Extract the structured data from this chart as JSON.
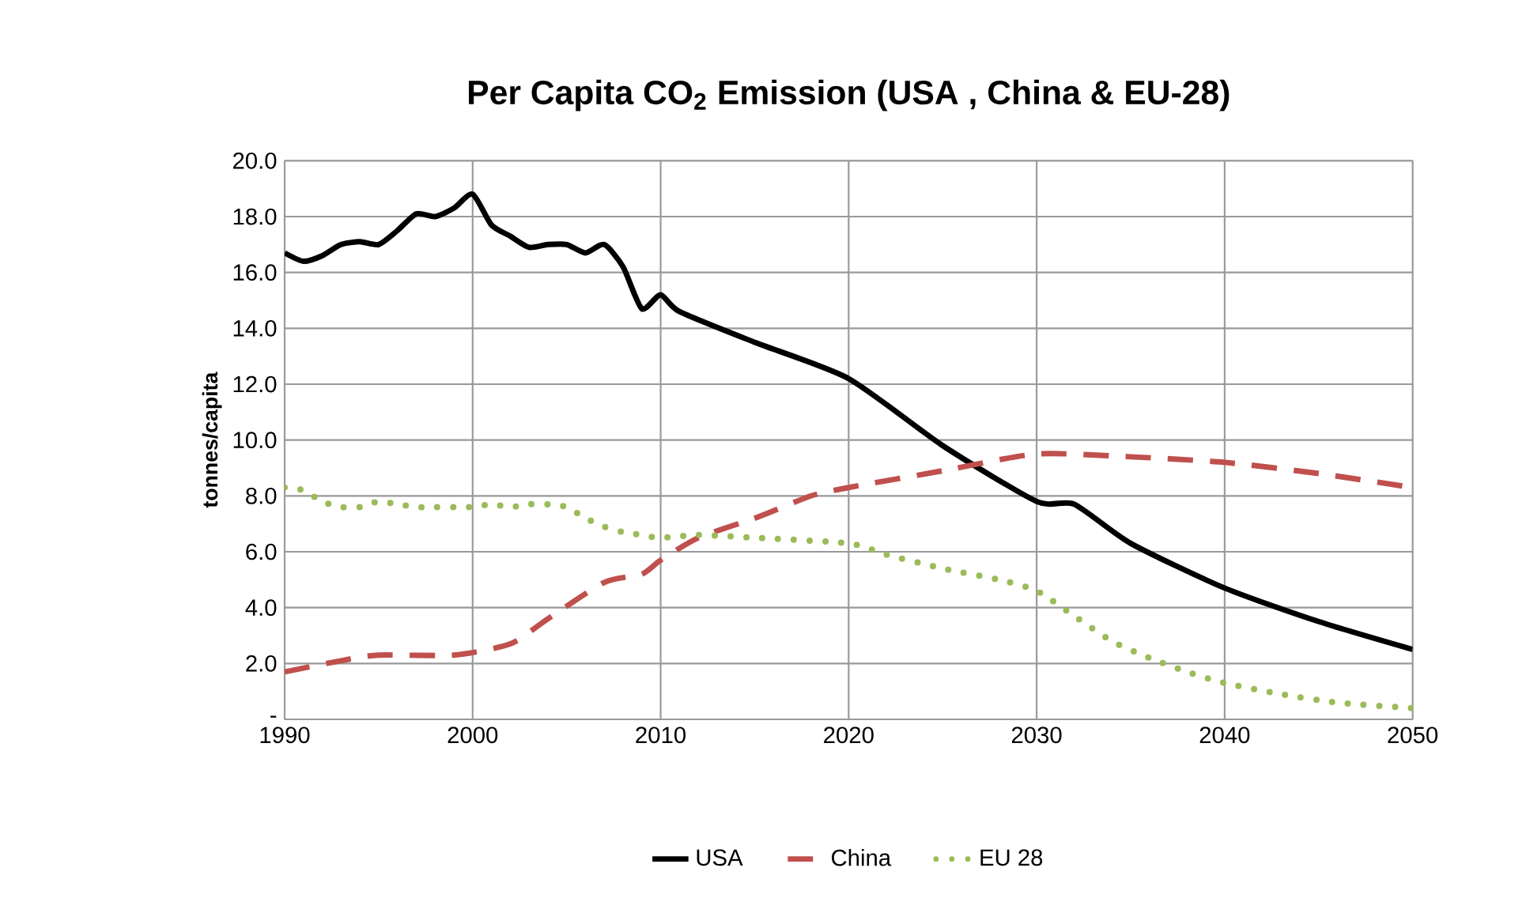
{
  "chart_data": {
    "type": "line",
    "title": "Per Capita CO$_{2}$ Emission (USA , China & EU-28)",
    "ylabel": "tonnes/capita",
    "xlim": [
      1990,
      2050
    ],
    "xticks": [
      1990,
      2000,
      2010,
      2020,
      2030,
      2040,
      2050
    ],
    "ylim": [
      0,
      20
    ],
    "yticks": [
      {
        "value": 0,
        "label": "-"
      },
      {
        "value": 2,
        "label": "2.0"
      },
      {
        "value": 4,
        "label": "4.0"
      },
      {
        "value": 6,
        "label": "6.0"
      },
      {
        "value": 8,
        "label": "8.0"
      },
      {
        "value": 10,
        "label": "10.0"
      },
      {
        "value": 12,
        "label": "12.0"
      },
      {
        "value": 14,
        "label": "14.0"
      },
      {
        "value": 16,
        "label": "16.0"
      },
      {
        "value": 18,
        "label": "18.0"
      },
      {
        "value": 20,
        "label": "20.0"
      }
    ],
    "grid": true,
    "legend": "bottom",
    "marker": "none",
    "series": [
      {
        "name": "USA",
        "color": "#000000",
        "line_style": "solid",
        "x": [
          1990,
          1991,
          1992,
          1993,
          1994,
          1995,
          1996,
          1997,
          1998,
          1999,
          2000,
          2001,
          2002,
          2003,
          2004,
          2005,
          2006,
          2007,
          2008,
          2009,
          2010,
          2011,
          2015,
          2020,
          2025,
          2030,
          2032,
          2035,
          2040,
          2045,
          2050
        ],
        "values": [
          16.7,
          16.4,
          16.6,
          17.0,
          17.1,
          17.0,
          17.5,
          18.1,
          18.0,
          18.3,
          18.8,
          17.7,
          17.3,
          16.9,
          17.0,
          17.0,
          16.7,
          17.0,
          16.2,
          14.7,
          15.2,
          14.6,
          13.5,
          12.2,
          9.8,
          7.8,
          7.7,
          6.3,
          4.7,
          3.5,
          2.5
        ]
      },
      {
        "name": "China",
        "color": "#c0504d",
        "line_style": "dashed",
        "x": [
          1990,
          1993,
          1995,
          1999,
          2002,
          2004,
          2007,
          2009,
          2010,
          2012,
          2015,
          2018,
          2020,
          2025,
          2030,
          2035,
          2040,
          2045,
          2050
        ],
        "values": [
          1.7,
          2.1,
          2.3,
          2.3,
          2.7,
          3.6,
          4.9,
          5.2,
          5.7,
          6.5,
          7.2,
          8.0,
          8.3,
          8.9,
          9.5,
          9.4,
          9.2,
          8.8,
          8.3
        ]
      },
      {
        "name": "EU 28",
        "color": "#9bbb59",
        "line_style": "dotted",
        "x": [
          1990,
          1991,
          1992,
          1993,
          1994,
          1995,
          1996,
          1997,
          1998,
          1999,
          2000,
          2001,
          2002,
          2003,
          2004,
          2005,
          2006,
          2007,
          2008,
          2009,
          2010,
          2012,
          2015,
          2020,
          2022,
          2025,
          2028,
          2030,
          2032,
          2034,
          2036,
          2038,
          2040,
          2043,
          2046,
          2050
        ],
        "values": [
          8.3,
          8.2,
          7.8,
          7.6,
          7.6,
          7.8,
          7.7,
          7.6,
          7.6,
          7.6,
          7.6,
          7.7,
          7.6,
          7.7,
          7.7,
          7.6,
          7.2,
          6.9,
          6.7,
          6.6,
          6.5,
          6.6,
          6.5,
          6.3,
          5.9,
          5.4,
          5.0,
          4.6,
          3.7,
          2.8,
          2.2,
          1.7,
          1.3,
          0.9,
          0.6,
          0.4
        ]
      }
    ]
  }
}
